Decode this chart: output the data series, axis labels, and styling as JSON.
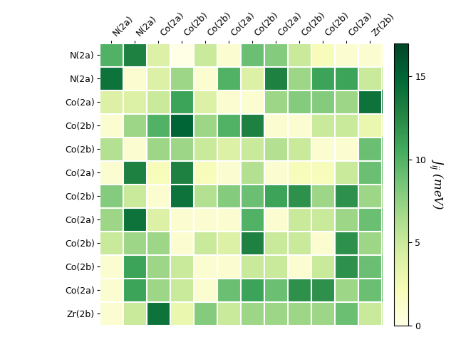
{
  "labels": [
    "N(2a)",
    "N(2a)",
    "Co(2a)",
    "Co(2b)",
    "Co(2b)",
    "Co(2a)",
    "Co(2b)",
    "Co(2a)",
    "Co(2b)",
    "Co(2b)",
    "Co(2a)",
    "Zr(2b)"
  ],
  "matrix": [
    [
      10,
      13,
      4,
      0,
      5,
      1,
      9,
      8,
      5,
      2,
      1,
      1
    ],
    [
      14,
      1,
      4,
      7,
      1,
      10,
      4,
      13,
      7,
      11,
      11,
      5
    ],
    [
      4,
      4,
      5,
      11,
      4,
      1,
      1,
      7,
      8,
      8,
      7,
      14
    ],
    [
      1,
      7,
      10,
      15,
      7,
      10,
      13,
      1,
      1,
      5,
      5,
      3
    ],
    [
      6,
      1,
      7,
      7,
      5,
      4,
      5,
      6,
      5,
      1,
      1,
      9
    ],
    [
      1,
      13,
      2,
      13,
      2,
      1,
      6,
      1,
      2,
      2,
      5,
      9
    ],
    [
      8,
      5,
      1,
      14,
      6,
      8,
      9,
      11,
      12,
      7,
      12,
      7
    ],
    [
      7,
      14,
      4,
      1,
      1,
      1,
      10,
      1,
      5,
      5,
      7,
      9
    ],
    [
      5,
      7,
      7,
      1,
      5,
      4,
      13,
      5,
      5,
      1,
      12,
      7
    ],
    [
      1,
      11,
      7,
      5,
      1,
      1,
      5,
      5,
      1,
      5,
      12,
      9
    ],
    [
      1,
      11,
      7,
      5,
      1,
      9,
      11,
      9,
      12,
      12,
      7,
      9
    ],
    [
      1,
      5,
      14,
      3,
      8,
      5,
      7,
      7,
      7,
      7,
      9,
      5
    ]
  ],
  "vmin": 0,
  "vmax": 17,
  "cmap": "YlGn",
  "colorbar_label": "$J_{ij}$ (meV)",
  "colorbar_ticks": [
    0,
    5,
    10,
    15
  ],
  "figsize": [
    6.4,
    4.8
  ],
  "dpi": 100
}
